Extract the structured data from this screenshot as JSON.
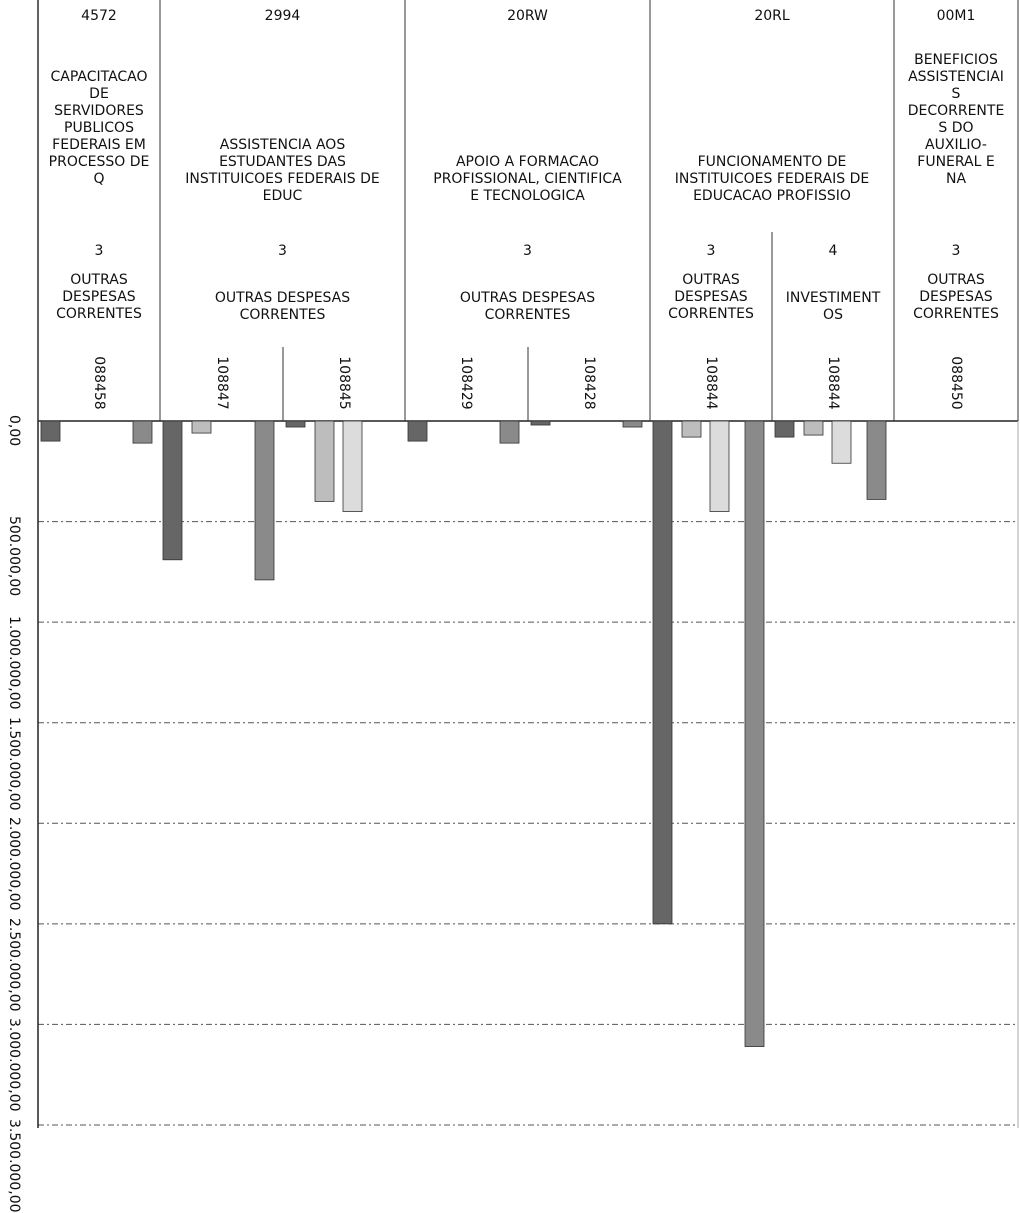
{
  "chart_data": {
    "type": "bar",
    "orientation": "downward-vertical",
    "actions": [
      {
        "code": "4572",
        "name": "CAPACITACAO DE SERVIDORES PUBLICOS FEDERAIS EM PROCESSO DE Q"
      },
      {
        "code": "2994",
        "name": "ASSISTENCIA AOS ESTUDANTES DAS INSTITUICOES FEDERAIS DE EDUC"
      },
      {
        "code": "20RW",
        "name": "APOIO A FORMACAO PROFISSIONAL, CIENTIFICA E TECNOLOGICA"
      },
      {
        "code": "20RL",
        "name": "FUNCIONAMENTO DE INSTITUICOES FEDERAIS DE EDUCACAO PROFISSIO"
      },
      {
        "code": "00M1",
        "name": "BENEFICIOS ASSISTENCIAIS DECORRENTES DO AUXILIO-FUNERAL E NA"
      }
    ],
    "groups": [
      {
        "action": "4572",
        "gnd": "3",
        "category": "OUTRAS DESPESAS CORRENTES",
        "ug": "088458"
      },
      {
        "action": "2994",
        "gnd": "3",
        "category": "OUTRAS DESPESAS CORRENTES",
        "ug": "108847"
      },
      {
        "action": "2994",
        "gnd": "3",
        "category": "OUTRAS DESPESAS CORRENTES",
        "ug": "108845"
      },
      {
        "action": "20RW",
        "gnd": "3",
        "category": "OUTRAS DESPESAS CORRENTES",
        "ug": "108429"
      },
      {
        "action": "20RW",
        "gnd": "3",
        "category": "OUTRAS DESPESAS CORRENTES",
        "ug": "108428"
      },
      {
        "action": "20RL",
        "gnd": "3",
        "category": "OUTRAS DESPESAS CORRENTES",
        "ug": "108844"
      },
      {
        "action": "20RL",
        "gnd": "4",
        "category": "INVESTIMENTOS",
        "ug": "108844"
      },
      {
        "action": "00M1",
        "gnd": "3",
        "category": "OUTRAS DESPESAS CORRENTES",
        "ug": "088450"
      }
    ],
    "header_blocks": [
      {
        "code": "4572",
        "name_lines": "CAPACITACAO\nDE\nSERVIDORES\nPUBLICOS\nFEDERAIS EM\nPROCESSO DE\nQ",
        "gnd": "3",
        "category_lines": "OUTRAS\nDESPESAS\nCORRENTES"
      },
      {
        "code": "2994",
        "name_lines": "ASSISTENCIA AOS\nESTUDANTES DAS\nINSTITUICOES FEDERAIS DE\nEDUC",
        "gnd": "3",
        "category_lines": "OUTRAS DESPESAS\nCORRENTES"
      },
      {
        "code": "20RW",
        "name_lines": "APOIO A FORMACAO\nPROFISSIONAL, CIENTIFICA\nE TECNOLOGICA",
        "gnd": "3",
        "category_lines": "OUTRAS DESPESAS\nCORRENTES"
      },
      {
        "code": "20RL",
        "name_lines": "FUNCIONAMENTO DE\nINSTITUICOES FEDERAIS DE\nEDUCACAO PROFISSIO",
        "gnd": "",
        "category_lines": ""
      },
      {
        "code": "00M1",
        "name_lines": "BENEFICIOS\nASSISTENCIAI\nS\nDECORRENTE\nS DO\nAUXILIO-\nFUNERAL E\nNA",
        "gnd": "3",
        "category_lines": "OUTRAS\nDESPESAS\nCORRENTES"
      }
    ],
    "sub_blocks_20RL": [
      {
        "gnd": "3",
        "category_lines": "OUTRAS\nDESPESAS\nCORRENTES"
      },
      {
        "gnd": "4",
        "category_lines": "INVESTIMENT\nOS"
      }
    ],
    "bars": [
      {
        "group": 0,
        "slot": 0,
        "value": 100000
      },
      {
        "group": 0,
        "slot": 3,
        "value": 110000
      },
      {
        "group": 1,
        "slot": 0,
        "value": 690000
      },
      {
        "group": 1,
        "slot": 1,
        "value": 60000
      },
      {
        "group": 1,
        "slot": 3,
        "value": 790000
      },
      {
        "group": 2,
        "slot": 0,
        "value": 30000
      },
      {
        "group": 2,
        "slot": 1,
        "value": 400000
      },
      {
        "group": 2,
        "slot": 2,
        "value": 450000
      },
      {
        "group": 3,
        "slot": 0,
        "value": 100000
      },
      {
        "group": 3,
        "slot": 3,
        "value": 110000
      },
      {
        "group": 4,
        "slot": 0,
        "value": 20000
      },
      {
        "group": 4,
        "slot": 3,
        "value": 30000
      },
      {
        "group": 5,
        "slot": 0,
        "value": 2500000
      },
      {
        "group": 5,
        "slot": 1,
        "value": 80000
      },
      {
        "group": 5,
        "slot": 2,
        "value": 450000
      },
      {
        "group": 5,
        "slot": 3,
        "value": 3110000
      },
      {
        "group": 6,
        "slot": 0,
        "value": 80000
      },
      {
        "group": 6,
        "slot": 1,
        "value": 70000
      },
      {
        "group": 6,
        "slot": 2,
        "value": 210000
      },
      {
        "group": 6,
        "slot": 3,
        "value": 390000
      }
    ],
    "y_axis": {
      "ylim": [
        0,
        3500000
      ],
      "ticks": [
        {
          "value": 0,
          "label": "0,00"
        },
        {
          "value": 500000,
          "label": "500.000,00"
        },
        {
          "value": 1000000,
          "label": "1.000.000,00"
        },
        {
          "value": 1500000,
          "label": "1.500.000,00"
        },
        {
          "value": 2000000,
          "label": "2.000.000,00"
        },
        {
          "value": 2500000,
          "label": "2.500.000,00"
        },
        {
          "value": 3000000,
          "label": "3.000.000,00"
        },
        {
          "value": 3500000,
          "label": "3.500.000,00"
        }
      ]
    },
    "grid": true,
    "slot_colors": [
      "#666666",
      "#bdbdbd",
      "#dcdcdc",
      "#8a8a8a"
    ]
  }
}
